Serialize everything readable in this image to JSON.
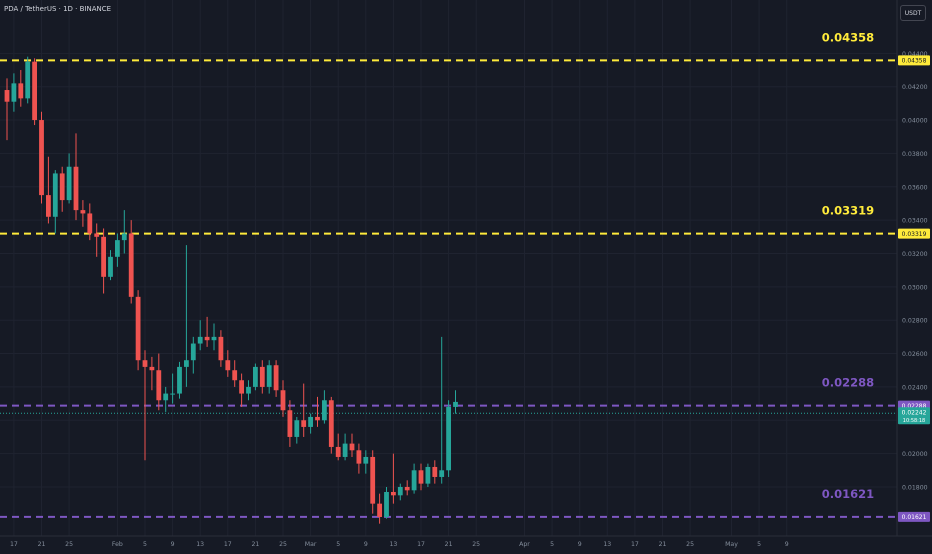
{
  "header": {
    "symbol": "PDA / TetherUS · 1D · BINANCE",
    "currency": "USDT"
  },
  "chart_data": {
    "type": "candlestick",
    "ylim": [
      0.0159,
      0.0442
    ],
    "y_ticks": [
      "0.04400",
      "0.04200",
      "0.04000",
      "0.03800",
      "0.03600",
      "0.03400",
      "0.03200",
      "0.03000",
      "0.02800",
      "0.02600",
      "0.02400",
      "0.02200",
      "0.02000",
      "0.01800"
    ],
    "x_ticks": [
      "17",
      "21",
      "25",
      "Feb",
      "5",
      "9",
      "13",
      "17",
      "21",
      "25",
      "Mar",
      "5",
      "9",
      "13",
      "17",
      "21",
      "25",
      "Apr",
      "5",
      "9",
      "13",
      "17",
      "21",
      "25",
      "May",
      "5",
      "9"
    ],
    "x_tick_days": [
      1,
      5,
      9,
      16,
      20,
      24,
      28,
      32,
      36,
      40,
      44,
      48,
      52,
      56,
      60,
      64,
      68,
      75,
      79,
      83,
      87,
      91,
      95,
      99,
      105,
      109,
      113
    ],
    "levels": [
      {
        "value": 0.04358,
        "label": "0.04358",
        "axis_label": "0.04358",
        "color": "#ffeb3b"
      },
      {
        "value": 0.03319,
        "label": "0.03319",
        "axis_label": "0.03319",
        "color": "#ffeb3b"
      },
      {
        "value": 0.02288,
        "label": "0.02288",
        "axis_label": "0.02288",
        "color": "#7e57c2"
      },
      {
        "value": 0.01621,
        "label": "0.01621",
        "axis_label": "0.01621",
        "color": "#7e57c2"
      }
    ],
    "current_price": {
      "value": 0.02242,
      "label": "0.02242",
      "countdown": "10:58:18"
    },
    "candles": [
      {
        "o": 0.0418,
        "h": 0.0425,
        "l": 0.0388,
        "c": 0.0411
      },
      {
        "o": 0.0411,
        "h": 0.0428,
        "l": 0.0405,
        "c": 0.0422
      },
      {
        "o": 0.0422,
        "h": 0.043,
        "l": 0.0408,
        "c": 0.0413
      },
      {
        "o": 0.0413,
        "h": 0.0438,
        "l": 0.041,
        "c": 0.0435
      },
      {
        "o": 0.0435,
        "h": 0.0437,
        "l": 0.0397,
        "c": 0.04
      },
      {
        "o": 0.04,
        "h": 0.0405,
        "l": 0.035,
        "c": 0.0355
      },
      {
        "o": 0.0355,
        "h": 0.0378,
        "l": 0.0338,
        "c": 0.0342
      },
      {
        "o": 0.0342,
        "h": 0.037,
        "l": 0.0332,
        "c": 0.0368
      },
      {
        "o": 0.0368,
        "h": 0.0372,
        "l": 0.0345,
        "c": 0.0352
      },
      {
        "o": 0.0352,
        "h": 0.038,
        "l": 0.035,
        "c": 0.0372
      },
      {
        "o": 0.0372,
        "h": 0.0392,
        "l": 0.034,
        "c": 0.0346
      },
      {
        "o": 0.0346,
        "h": 0.0352,
        "l": 0.0336,
        "c": 0.0344
      },
      {
        "o": 0.0344,
        "h": 0.035,
        "l": 0.0328,
        "c": 0.0332
      },
      {
        "o": 0.0332,
        "h": 0.0338,
        "l": 0.0318,
        "c": 0.033
      },
      {
        "o": 0.033,
        "h": 0.0335,
        "l": 0.0296,
        "c": 0.0306
      },
      {
        "o": 0.0306,
        "h": 0.0322,
        "l": 0.0304,
        "c": 0.0318
      },
      {
        "o": 0.0318,
        "h": 0.0332,
        "l": 0.0312,
        "c": 0.0328
      },
      {
        "o": 0.0328,
        "h": 0.0346,
        "l": 0.032,
        "c": 0.0332
      },
      {
        "o": 0.0332,
        "h": 0.034,
        "l": 0.029,
        "c": 0.0294
      },
      {
        "o": 0.0294,
        "h": 0.0298,
        "l": 0.025,
        "c": 0.0256
      },
      {
        "o": 0.0256,
        "h": 0.0262,
        "l": 0.0196,
        "c": 0.0252
      },
      {
        "o": 0.0252,
        "h": 0.0258,
        "l": 0.0238,
        "c": 0.025
      },
      {
        "o": 0.025,
        "h": 0.026,
        "l": 0.0226,
        "c": 0.0232
      },
      {
        "o": 0.0232,
        "h": 0.024,
        "l": 0.0225,
        "c": 0.0236
      },
      {
        "o": 0.0236,
        "h": 0.0248,
        "l": 0.023,
        "c": 0.0236
      },
      {
        "o": 0.0236,
        "h": 0.0255,
        "l": 0.0233,
        "c": 0.0252
      },
      {
        "o": 0.0252,
        "h": 0.0325,
        "l": 0.024,
        "c": 0.0256
      },
      {
        "o": 0.0256,
        "h": 0.027,
        "l": 0.0248,
        "c": 0.0266
      },
      {
        "o": 0.0266,
        "h": 0.028,
        "l": 0.0262,
        "c": 0.027
      },
      {
        "o": 0.027,
        "h": 0.0282,
        "l": 0.0264,
        "c": 0.0268
      },
      {
        "o": 0.0268,
        "h": 0.0278,
        "l": 0.0262,
        "c": 0.027
      },
      {
        "o": 0.027,
        "h": 0.0274,
        "l": 0.0252,
        "c": 0.0256
      },
      {
        "o": 0.0256,
        "h": 0.0262,
        "l": 0.0246,
        "c": 0.025
      },
      {
        "o": 0.025,
        "h": 0.0256,
        "l": 0.024,
        "c": 0.0244
      },
      {
        "o": 0.0244,
        "h": 0.0248,
        "l": 0.0228,
        "c": 0.0236
      },
      {
        "o": 0.0236,
        "h": 0.0244,
        "l": 0.0232,
        "c": 0.024
      },
      {
        "o": 0.024,
        "h": 0.0254,
        "l": 0.0238,
        "c": 0.0252
      },
      {
        "o": 0.0252,
        "h": 0.0256,
        "l": 0.0236,
        "c": 0.024
      },
      {
        "o": 0.024,
        "h": 0.0256,
        "l": 0.0236,
        "c": 0.0253
      },
      {
        "o": 0.0253,
        "h": 0.0256,
        "l": 0.0234,
        "c": 0.0238
      },
      {
        "o": 0.0238,
        "h": 0.0244,
        "l": 0.0222,
        "c": 0.0226
      },
      {
        "o": 0.0226,
        "h": 0.0232,
        "l": 0.0204,
        "c": 0.021
      },
      {
        "o": 0.021,
        "h": 0.0222,
        "l": 0.0206,
        "c": 0.022
      },
      {
        "o": 0.022,
        "h": 0.0242,
        "l": 0.021,
        "c": 0.0216
      },
      {
        "o": 0.0216,
        "h": 0.0224,
        "l": 0.0212,
        "c": 0.0222
      },
      {
        "o": 0.0222,
        "h": 0.0234,
        "l": 0.0216,
        "c": 0.022
      },
      {
        "o": 0.022,
        "h": 0.0238,
        "l": 0.0218,
        "c": 0.0232
      },
      {
        "o": 0.0232,
        "h": 0.0234,
        "l": 0.02,
        "c": 0.0204
      },
      {
        "o": 0.0204,
        "h": 0.0212,
        "l": 0.0196,
        "c": 0.0198
      },
      {
        "o": 0.0198,
        "h": 0.0212,
        "l": 0.0196,
        "c": 0.0206
      },
      {
        "o": 0.0206,
        "h": 0.0212,
        "l": 0.0198,
        "c": 0.0202
      },
      {
        "o": 0.0202,
        "h": 0.0206,
        "l": 0.0188,
        "c": 0.0194
      },
      {
        "o": 0.0194,
        "h": 0.0202,
        "l": 0.0188,
        "c": 0.0198
      },
      {
        "o": 0.0198,
        "h": 0.0202,
        "l": 0.0164,
        "c": 0.017
      },
      {
        "o": 0.017,
        "h": 0.0176,
        "l": 0.0158,
        "c": 0.0162
      },
      {
        "o": 0.0162,
        "h": 0.018,
        "l": 0.0161,
        "c": 0.0177
      },
      {
        "o": 0.0177,
        "h": 0.02,
        "l": 0.017,
        "c": 0.0175
      },
      {
        "o": 0.0175,
        "h": 0.0182,
        "l": 0.0172,
        "c": 0.018
      },
      {
        "o": 0.018,
        "h": 0.0184,
        "l": 0.0175,
        "c": 0.0178
      },
      {
        "o": 0.0178,
        "h": 0.0194,
        "l": 0.0176,
        "c": 0.019
      },
      {
        "o": 0.019,
        "h": 0.0194,
        "l": 0.0178,
        "c": 0.0182
      },
      {
        "o": 0.0182,
        "h": 0.0194,
        "l": 0.018,
        "c": 0.0192
      },
      {
        "o": 0.0192,
        "h": 0.0196,
        "l": 0.0182,
        "c": 0.0186
      },
      {
        "o": 0.0186,
        "h": 0.027,
        "l": 0.0182,
        "c": 0.019
      },
      {
        "o": 0.019,
        "h": 0.0232,
        "l": 0.0186,
        "c": 0.0228
      },
      {
        "o": 0.0228,
        "h": 0.0238,
        "l": 0.0224,
        "c": 0.0231
      }
    ],
    "up_color": "#26a69a",
    "down_color": "#ef5350",
    "grid": true
  }
}
